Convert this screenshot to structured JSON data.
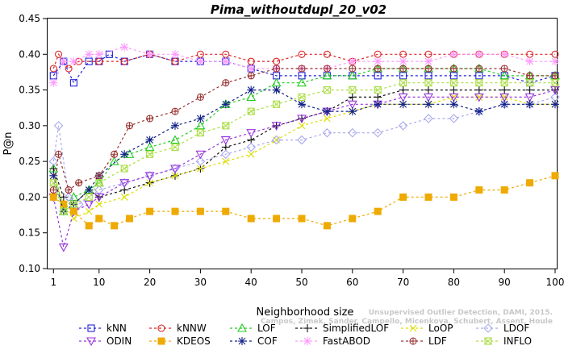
{
  "chart_data": {
    "type": "line",
    "title": "Pima_withoutdupl_20_v02",
    "xlabel": "Neighborhood size",
    "ylabel": "P@n",
    "xlim": [
      0,
      100
    ],
    "ylim": [
      0.1,
      0.45
    ],
    "xticks": [
      1,
      10,
      20,
      30,
      40,
      50,
      60,
      70,
      80,
      90,
      100
    ],
    "yticks": [
      0.1,
      0.15,
      0.2,
      0.25,
      0.3,
      0.35,
      0.4,
      0.45
    ],
    "grid": false,
    "legend_position": "bottom",
    "watermark": [
      "Unsupervised Outlier Detection, DAMI, 2015.",
      "Campos, Zimek, Sander, Campello, Micenkova, Schubert, Assent, Houle"
    ],
    "series": [
      {
        "name": "kNN",
        "color": "#2222dd",
        "marker": "square",
        "dash": "3,3",
        "x": [
          1,
          3,
          5,
          8,
          10,
          12,
          15,
          20,
          25,
          30,
          35,
          40,
          45,
          50,
          55,
          60,
          65,
          70,
          75,
          80,
          85,
          90,
          95,
          100
        ],
        "y": [
          0.37,
          0.39,
          0.36,
          0.39,
          0.39,
          0.4,
          0.39,
          0.4,
          0.39,
          0.39,
          0.39,
          0.38,
          0.37,
          0.37,
          0.37,
          0.37,
          0.37,
          0.37,
          0.37,
          0.37,
          0.37,
          0.37,
          0.36,
          0.37
        ]
      },
      {
        "name": "kNNW",
        "color": "#dd2222",
        "marker": "circle",
        "dash": "3,3",
        "x": [
          1,
          2,
          4,
          6,
          10,
          15,
          20,
          25,
          30,
          35,
          40,
          45,
          50,
          55,
          60,
          65,
          70,
          75,
          80,
          85,
          90,
          95,
          100
        ],
        "y": [
          0.38,
          0.4,
          0.38,
          0.39,
          0.39,
          0.39,
          0.4,
          0.39,
          0.4,
          0.4,
          0.39,
          0.39,
          0.4,
          0.4,
          0.39,
          0.4,
          0.4,
          0.4,
          0.4,
          0.4,
          0.4,
          0.4,
          0.4
        ]
      },
      {
        "name": "LOF",
        "color": "#22cc22",
        "marker": "triangle",
        "dash": "3,3",
        "x": [
          1,
          3,
          5,
          8,
          10,
          13,
          16,
          20,
          25,
          30,
          35,
          40,
          45,
          50,
          55,
          60,
          65,
          70,
          75,
          80,
          85,
          90,
          95,
          100
        ],
        "y": [
          0.24,
          0.18,
          0.2,
          0.21,
          0.22,
          0.25,
          0.26,
          0.27,
          0.28,
          0.3,
          0.33,
          0.34,
          0.36,
          0.36,
          0.37,
          0.37,
          0.38,
          0.38,
          0.38,
          0.38,
          0.38,
          0.37,
          0.37,
          0.37
        ]
      },
      {
        "name": "SimplifiedLOF",
        "color": "#111111",
        "marker": "plus",
        "dash": "3,3",
        "x": [
          1,
          3,
          5,
          8,
          10,
          15,
          20,
          25,
          30,
          35,
          40,
          45,
          50,
          55,
          60,
          65,
          70,
          75,
          80,
          85,
          90,
          95,
          100
        ],
        "y": [
          0.24,
          0.2,
          0.19,
          0.21,
          0.2,
          0.21,
          0.22,
          0.23,
          0.24,
          0.27,
          0.28,
          0.3,
          0.31,
          0.32,
          0.34,
          0.34,
          0.35,
          0.35,
          0.35,
          0.35,
          0.35,
          0.35,
          0.35
        ]
      },
      {
        "name": "LoOP",
        "color": "#dddd00",
        "marker": "cross",
        "dash": "3,3",
        "x": [
          1,
          3,
          5,
          8,
          10,
          15,
          20,
          25,
          30,
          35,
          40,
          45,
          50,
          55,
          60,
          65,
          70,
          75,
          80,
          85,
          90,
          95,
          100
        ],
        "y": [
          0.23,
          0.19,
          0.17,
          0.18,
          0.19,
          0.2,
          0.22,
          0.23,
          0.24,
          0.25,
          0.26,
          0.28,
          0.3,
          0.31,
          0.32,
          0.33,
          0.33,
          0.33,
          0.34,
          0.34,
          0.34,
          0.33,
          0.33
        ]
      },
      {
        "name": "LDOF",
        "color": "#aaaaee",
        "marker": "diamond",
        "dash": "3,3",
        "x": [
          1,
          2,
          4,
          6,
          10,
          15,
          20,
          25,
          30,
          35,
          40,
          45,
          50,
          55,
          60,
          65,
          70,
          75,
          80,
          85,
          90,
          95,
          100
        ],
        "y": [
          0.25,
          0.3,
          0.2,
          0.19,
          0.21,
          0.22,
          0.23,
          0.24,
          0.25,
          0.26,
          0.27,
          0.28,
          0.28,
          0.29,
          0.29,
          0.29,
          0.3,
          0.31,
          0.31,
          0.32,
          0.33,
          0.33,
          0.34
        ]
      },
      {
        "name": "ODIN",
        "color": "#9933dd",
        "marker": "triangle-down",
        "dash": "3,3",
        "x": [
          1,
          3,
          5,
          8,
          10,
          15,
          20,
          25,
          30,
          35,
          40,
          45,
          50,
          55,
          60,
          65,
          70,
          75,
          80,
          85,
          90,
          95,
          100
        ],
        "y": [
          0.2,
          0.13,
          0.18,
          0.19,
          0.2,
          0.22,
          0.23,
          0.24,
          0.26,
          0.28,
          0.29,
          0.3,
          0.31,
          0.32,
          0.33,
          0.33,
          0.34,
          0.34,
          0.34,
          0.34,
          0.34,
          0.34,
          0.35
        ]
      },
      {
        "name": "KDEOS",
        "color": "#eeaa00",
        "marker": "square-filled",
        "dash": "3,3",
        "x": [
          1,
          3,
          5,
          8,
          10,
          13,
          16,
          20,
          25,
          30,
          35,
          40,
          45,
          50,
          55,
          60,
          65,
          70,
          75,
          80,
          85,
          90,
          95,
          100
        ],
        "y": [
          0.2,
          0.19,
          0.18,
          0.16,
          0.17,
          0.16,
          0.17,
          0.18,
          0.18,
          0.18,
          0.18,
          0.17,
          0.17,
          0.17,
          0.16,
          0.17,
          0.18,
          0.2,
          0.2,
          0.2,
          0.21,
          0.21,
          0.22,
          0.23
        ]
      },
      {
        "name": "COF",
        "color": "#112288",
        "marker": "asterisk",
        "dash": "3,3",
        "x": [
          1,
          3,
          5,
          8,
          10,
          15,
          20,
          25,
          30,
          35,
          40,
          45,
          50,
          55,
          60,
          65,
          70,
          75,
          80,
          85,
          90,
          95,
          100
        ],
        "y": [
          0.23,
          0.18,
          0.19,
          0.21,
          0.23,
          0.26,
          0.28,
          0.3,
          0.31,
          0.33,
          0.35,
          0.35,
          0.33,
          0.32,
          0.32,
          0.33,
          0.33,
          0.33,
          0.33,
          0.32,
          0.33,
          0.33,
          0.33
        ]
      },
      {
        "name": "FastABOD",
        "color": "#ff99ff",
        "marker": "plus-circle",
        "dash": "3,3",
        "x": [
          1,
          3,
          5,
          8,
          10,
          15,
          20,
          25,
          30,
          35,
          40,
          45,
          50,
          55,
          60,
          65,
          70,
          75,
          80,
          85,
          90,
          95,
          100
        ],
        "y": [
          0.36,
          0.39,
          0.39,
          0.4,
          0.4,
          0.41,
          0.4,
          0.4,
          0.39,
          0.39,
          0.38,
          0.38,
          0.38,
          0.38,
          0.39,
          0.39,
          0.39,
          0.39,
          0.4,
          0.4,
          0.4,
          0.39,
          0.39
        ]
      },
      {
        "name": "LDF",
        "color": "#993333",
        "marker": "circle-plus",
        "dash": "3,3",
        "x": [
          1,
          2,
          4,
          6,
          10,
          13,
          16,
          20,
          25,
          30,
          35,
          40,
          45,
          50,
          55,
          60,
          65,
          70,
          75,
          80,
          85,
          90,
          95,
          100
        ],
        "y": [
          0.21,
          0.26,
          0.21,
          0.22,
          0.23,
          0.26,
          0.3,
          0.31,
          0.32,
          0.34,
          0.36,
          0.37,
          0.38,
          0.38,
          0.38,
          0.38,
          0.38,
          0.38,
          0.38,
          0.38,
          0.38,
          0.38,
          0.37,
          0.37
        ]
      },
      {
        "name": "INFLO",
        "color": "#aadd44",
        "marker": "hourglass",
        "dash": "3,3",
        "x": [
          1,
          3,
          5,
          8,
          10,
          15,
          20,
          25,
          30,
          35,
          40,
          45,
          50,
          55,
          60,
          65,
          70,
          75,
          80,
          85,
          90,
          95,
          100
        ],
        "y": [
          0.22,
          0.18,
          0.19,
          0.2,
          0.22,
          0.24,
          0.26,
          0.27,
          0.29,
          0.3,
          0.32,
          0.33,
          0.34,
          0.35,
          0.35,
          0.35,
          0.36,
          0.36,
          0.36,
          0.36,
          0.36,
          0.36,
          0.36
        ]
      }
    ]
  }
}
